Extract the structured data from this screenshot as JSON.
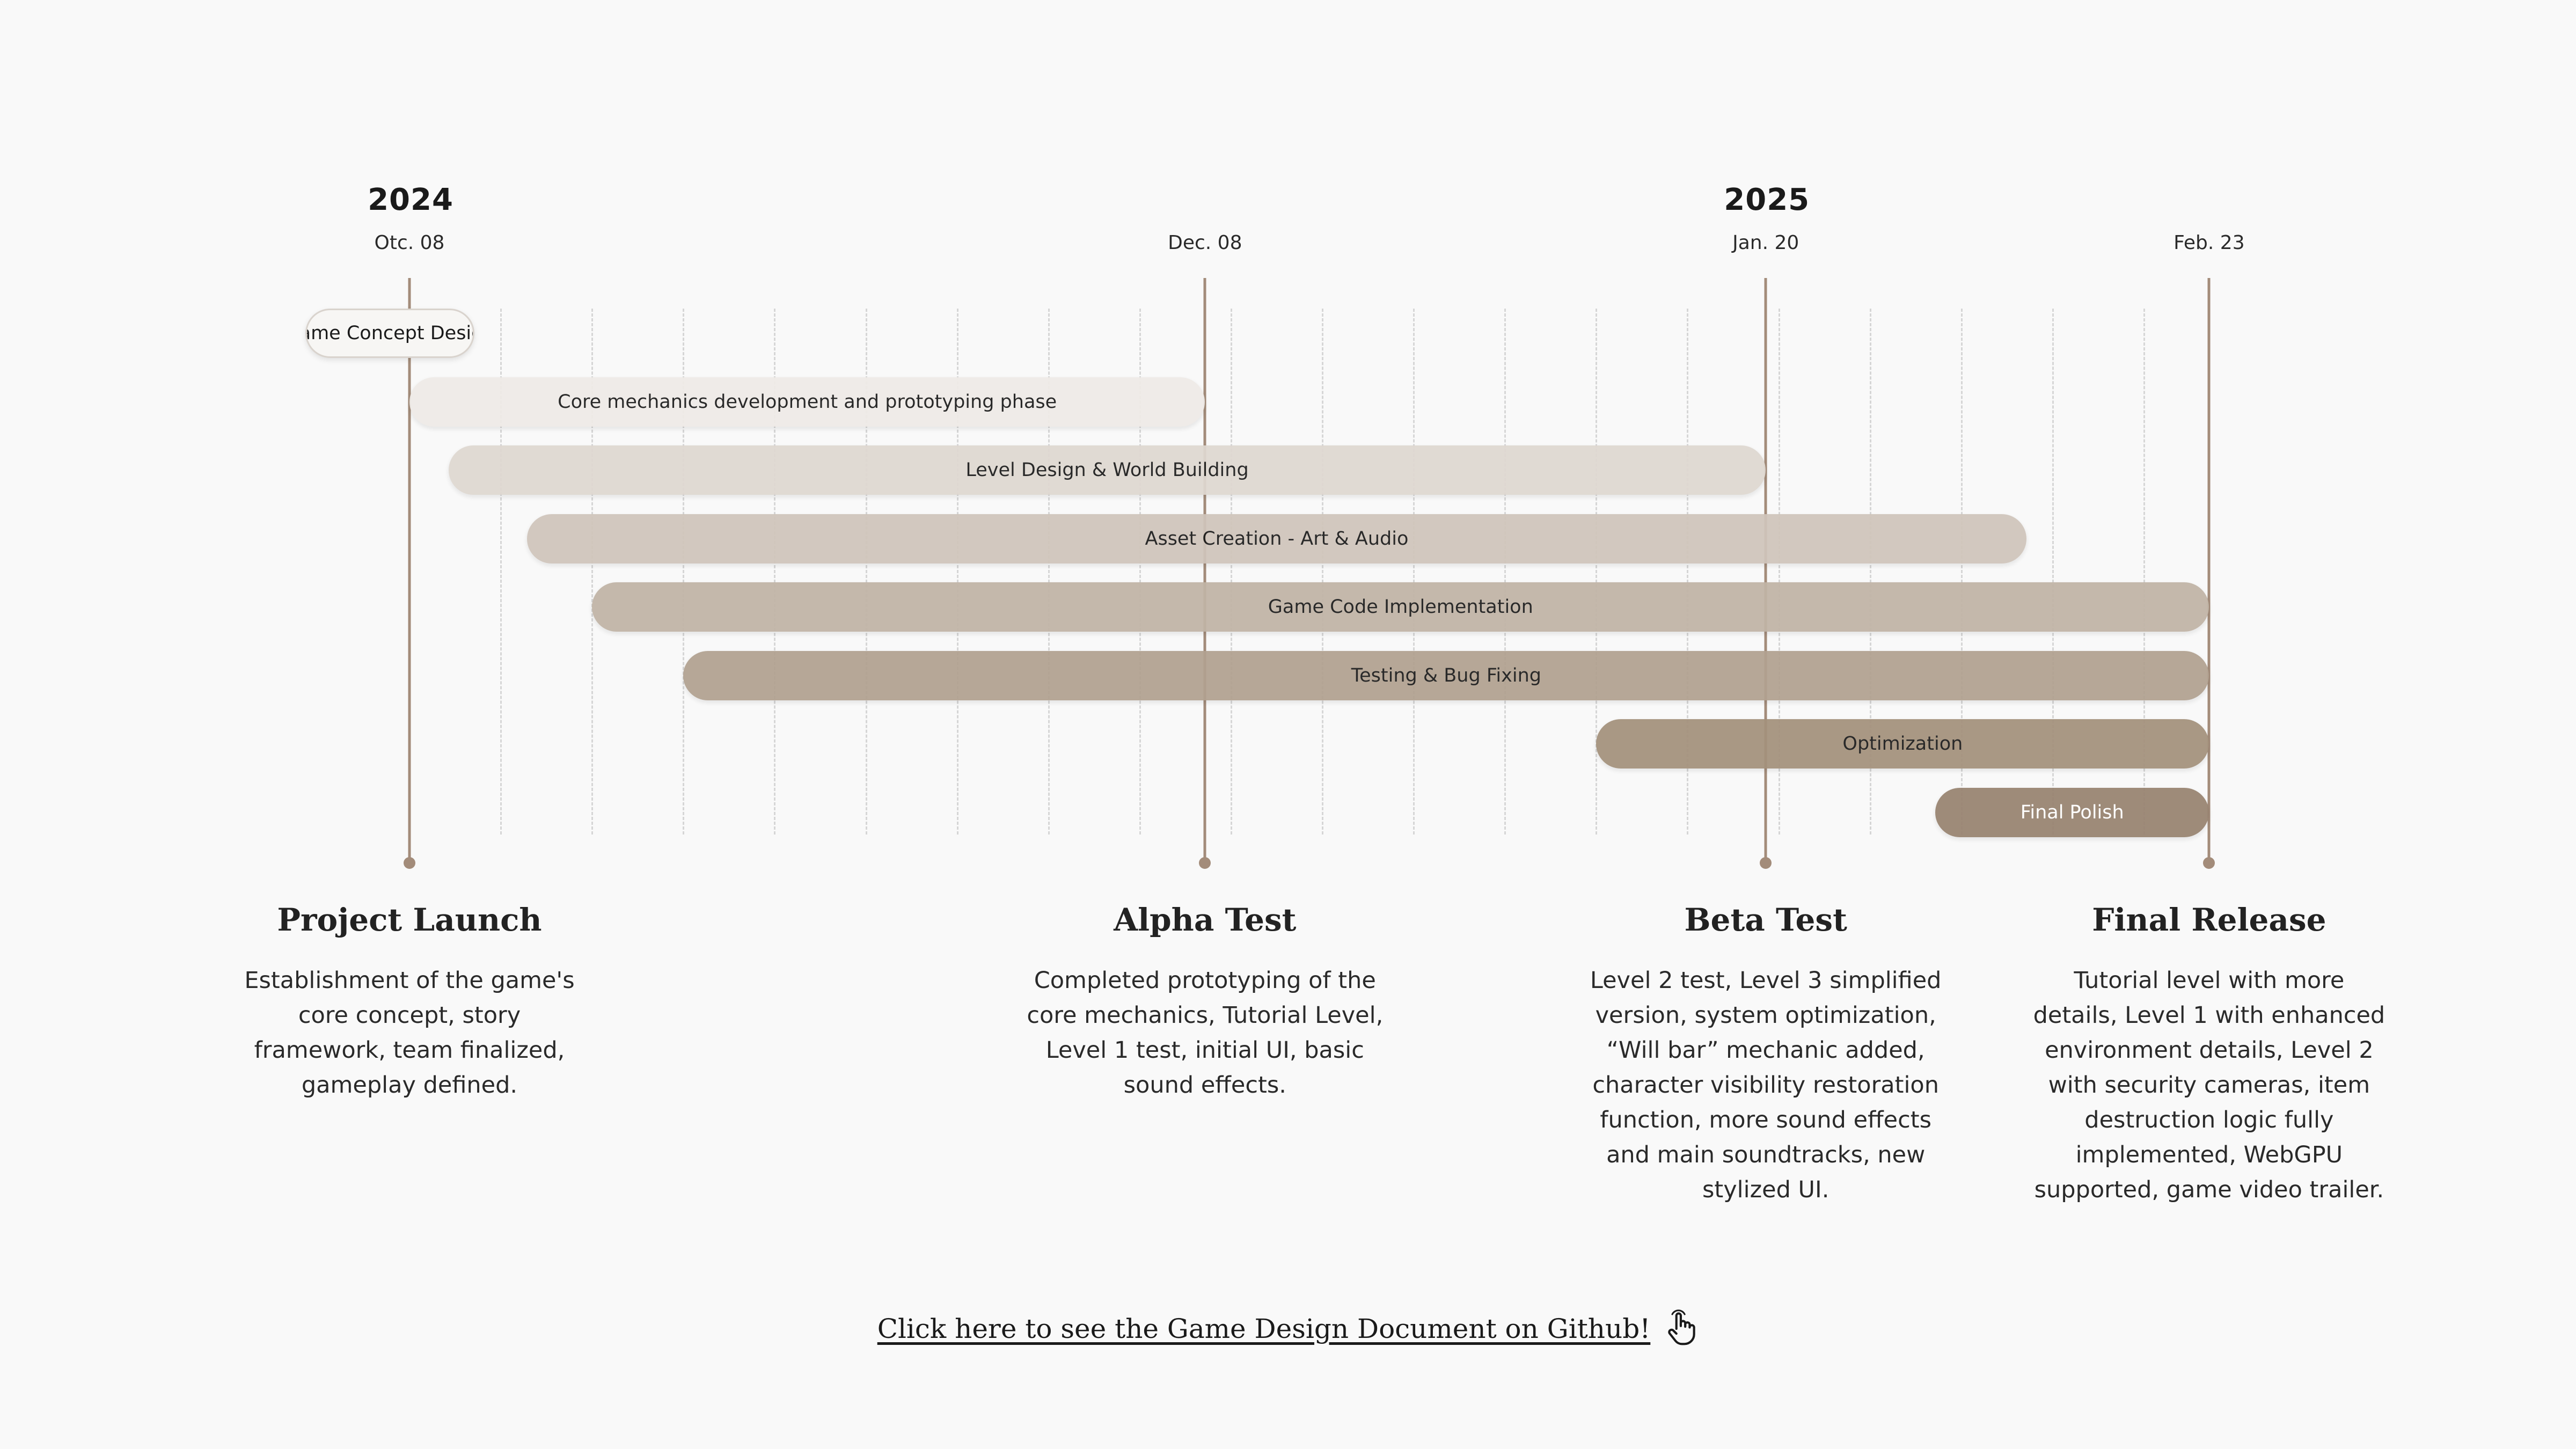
{
  "chart_data": {
    "type": "gantt",
    "years": [
      {
        "label": "2024",
        "date": "2024-10-08"
      },
      {
        "label": "2025",
        "date": "2025-01-20"
      }
    ],
    "milestone_dates": [
      {
        "label": "Otc. 08",
        "date": "2024-10-08"
      },
      {
        "label": "Dec. 08",
        "date": "2024-12-08"
      },
      {
        "label": "Jan. 20",
        "date": "2025-01-20"
      },
      {
        "label": "Feb. 23",
        "date": "2025-02-23"
      }
    ],
    "tasks": [
      {
        "name": "Game Concept Design",
        "start": "2024-09-30",
        "end": "2024-10-13",
        "color": "#f7f6f4",
        "text_color": "#1a1a1a",
        "outlined": true
      },
      {
        "name": "Core mechanics development and prototyping phase",
        "start": "2024-10-08",
        "end": "2024-12-08",
        "color": "#efebe7",
        "text_color": "#1a1a1a"
      },
      {
        "name": "Level Design & World Building",
        "start": "2024-10-11",
        "end": "2025-01-20",
        "color": "#dfd8d1",
        "text_color": "#1a1a1a"
      },
      {
        "name": "Asset Creation - Art & Audio",
        "start": "2024-10-17",
        "end": "2025-02-09",
        "color": "#d0c5bb",
        "text_color": "#1a1a1a"
      },
      {
        "name": "Game Code Implementation",
        "start": "2024-10-22",
        "end": "2025-02-23",
        "color": "#c1b4a6",
        "text_color": "#1a1a1a"
      },
      {
        "name": "Testing & Bug Fixing",
        "start": "2024-10-29",
        "end": "2025-02-23",
        "color": "#b1a190",
        "text_color": "#1a1a1a"
      },
      {
        "name": "Optimization",
        "start": "2025-01-07",
        "end": "2025-02-23",
        "color": "#a4917c",
        "text_color": "#1a1a1a"
      },
      {
        "name": "Final Polish",
        "start": "2025-02-02",
        "end": "2025-02-23",
        "color": "#988370",
        "text_color": "#ffffff"
      }
    ],
    "milestones": [
      {
        "date": "2024-10-08",
        "title": "Project Launch",
        "description": "Establishment of the game's core concept, story framework, team finalized, gameplay defined."
      },
      {
        "date": "2024-12-08",
        "title": "Alpha Test",
        "description": "Completed prototyping of the core mechanics, Tutorial Level, Level 1 test, initial UI, basic sound effects."
      },
      {
        "date": "2025-01-20",
        "title": "Beta Test",
        "description": "Level 2 test, Level 3 simplified version, system optimization, “Will bar” mechanic added, character visibility restoration function, more sound effects and main soundtracks, new stylized UI."
      },
      {
        "date": "2025-02-23",
        "title": "Final Release",
        "description": "Tutorial level with more details, Level 1 with enhanced environment details, Level 2 with security cameras, item destruction logic fully implemented, WebGPU supported, game video trailer."
      }
    ],
    "grid": true,
    "line_color": "#a38c7a"
  },
  "footer": {
    "link_text": "Click here to see the Game Design Document on Github!",
    "icon": "hand-pointer-icon"
  }
}
